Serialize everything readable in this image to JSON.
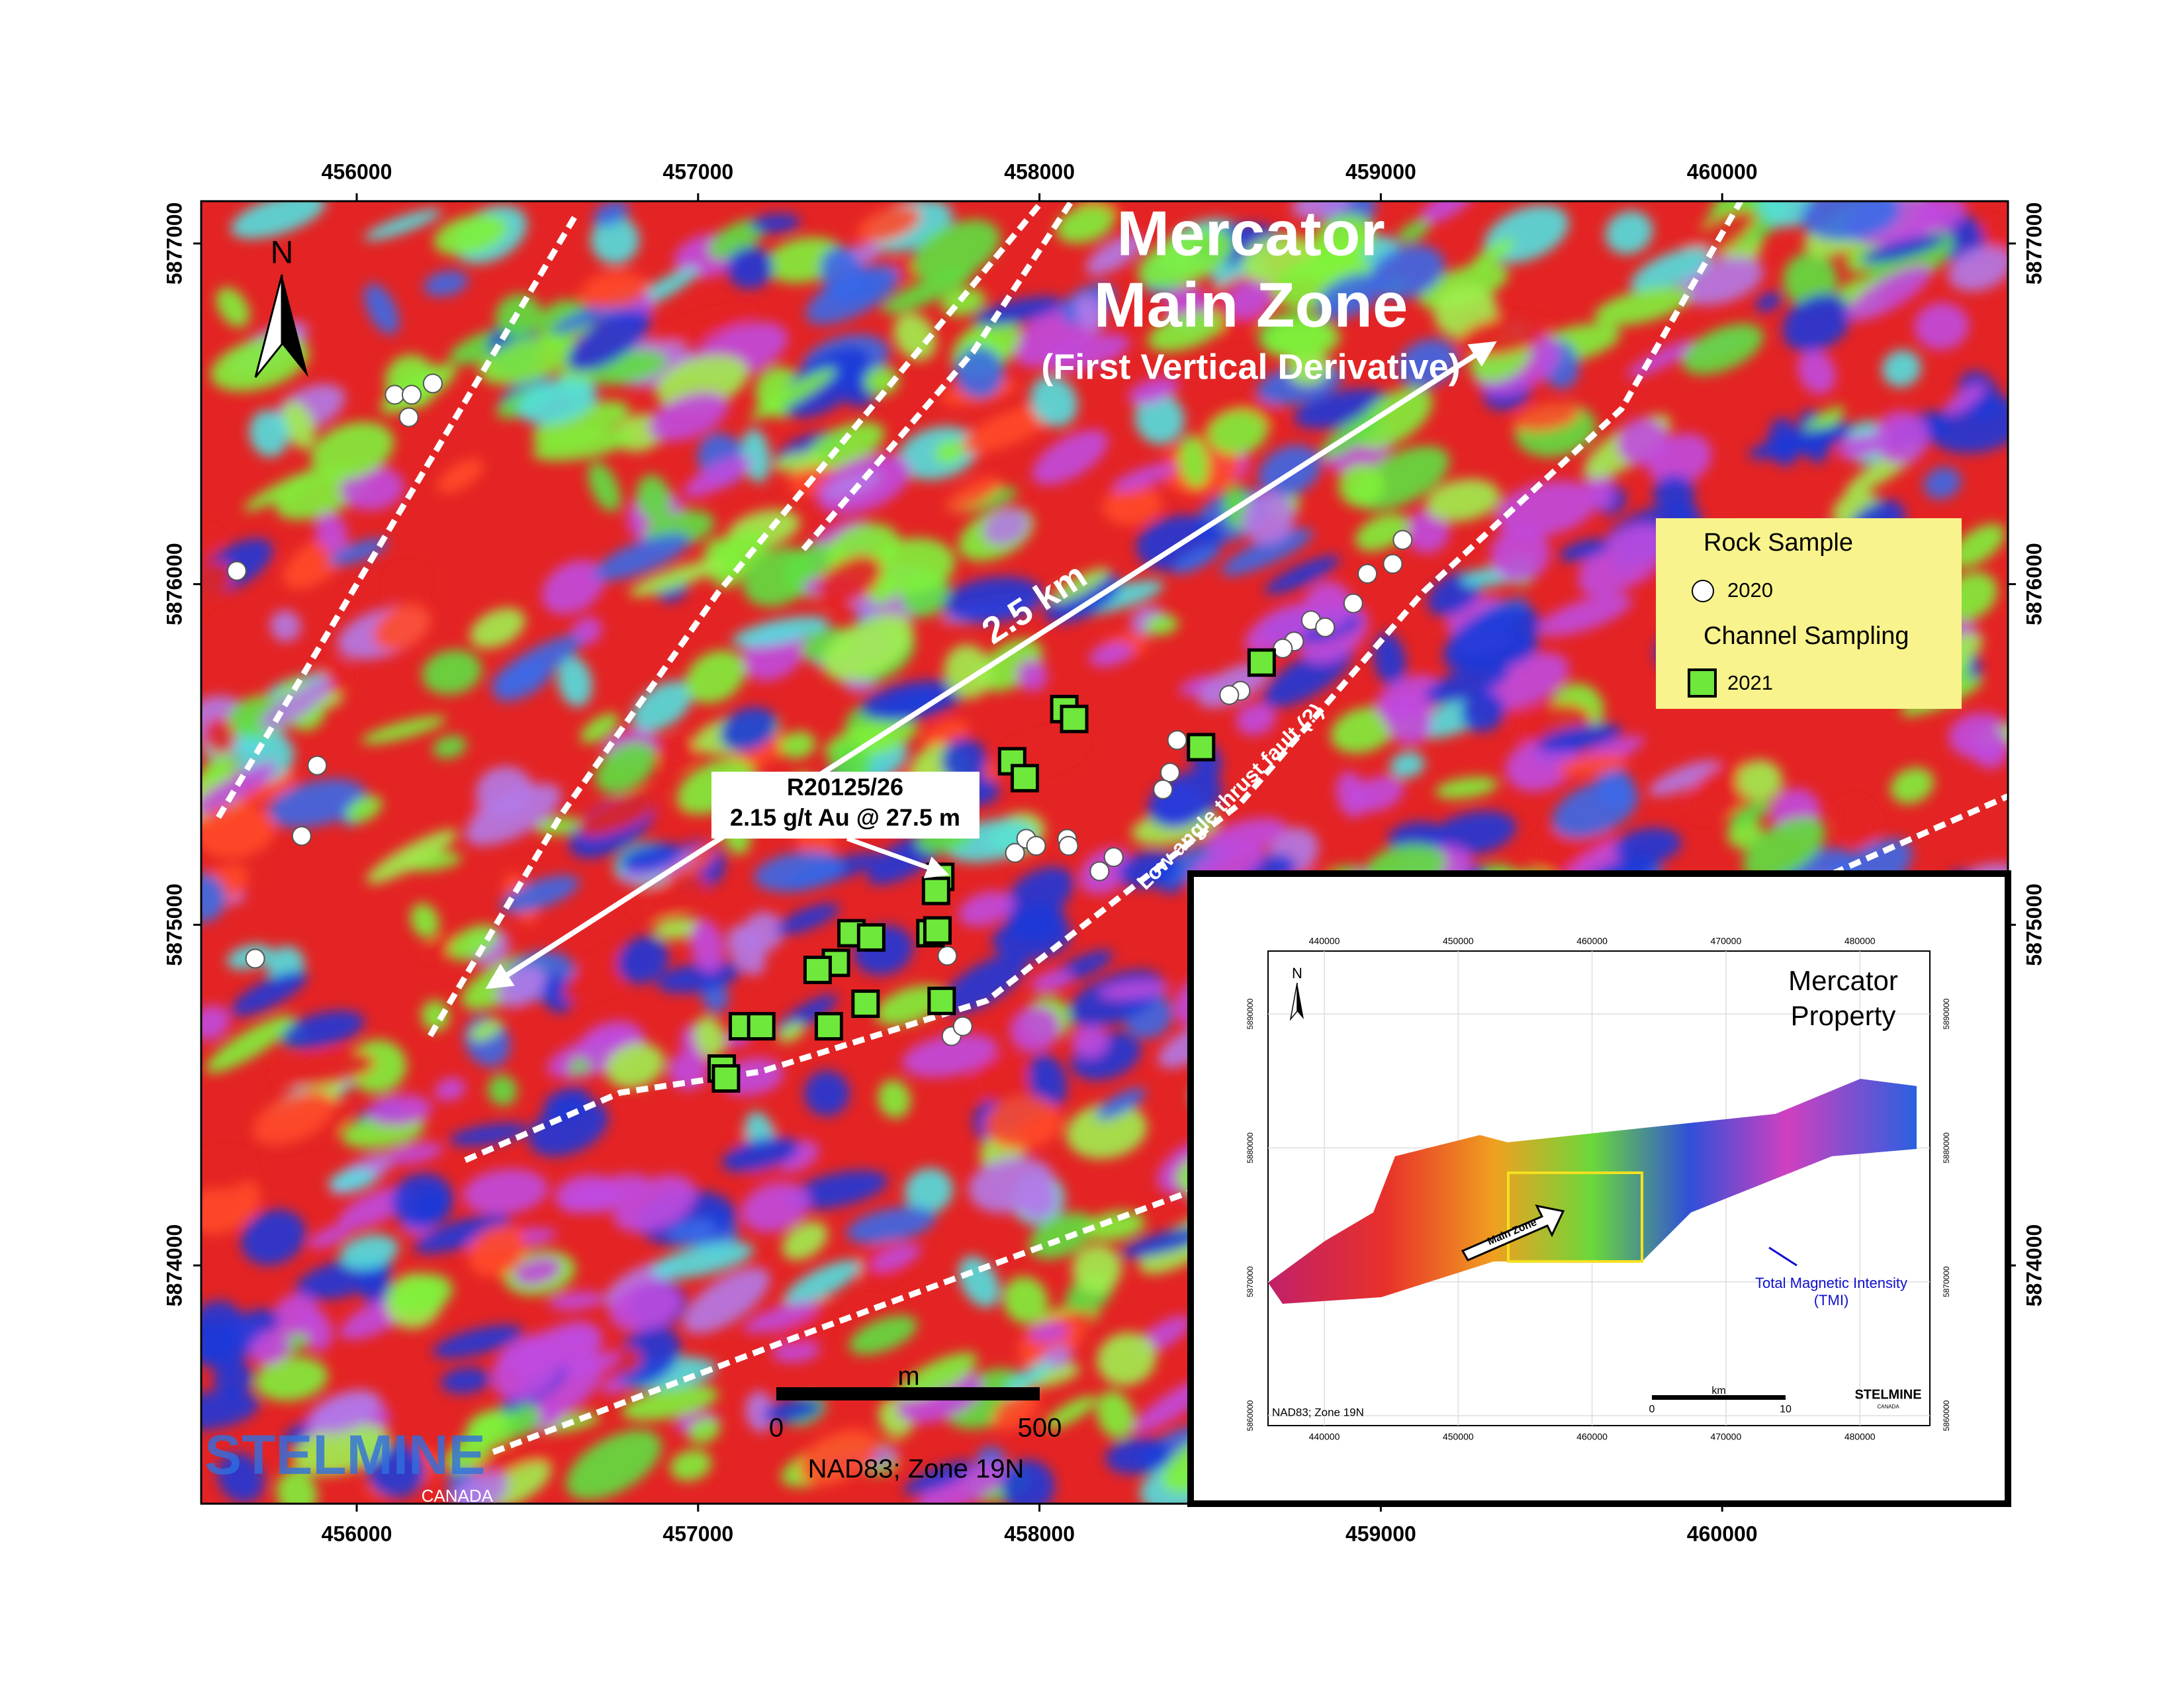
{
  "map": {
    "title_line1": "Mercator",
    "title_line2": "Main Zone",
    "subtitle": "(First Vertical Derivative)",
    "north": "N",
    "distance_label": "2.5 km",
    "fault_label": "Low angle thrust fault (?)",
    "callout": {
      "id": "R20125/26",
      "result": "2.15 g/t Au @ 27.5 m"
    },
    "xticks": [
      456000,
      457000,
      458000,
      459000,
      460000
    ],
    "yticks": [
      5874000,
      5875000,
      5876000,
      5877000
    ],
    "scale_bar": {
      "unit": "m",
      "ticks": [
        0,
        500
      ]
    },
    "projection": "NAD83; Zone 19N",
    "logo": {
      "name": "STELMINE",
      "country": "CANADA"
    }
  },
  "legend": {
    "rock_title": "Rock Sample",
    "rock_year": "2020",
    "channel_title": "Channel Sampling",
    "channel_year": "2021"
  },
  "inset": {
    "title_line1": "Mercator",
    "title_line2": "Property",
    "north": "N",
    "xticks": [
      440000,
      450000,
      460000,
      470000,
      480000
    ],
    "yticks": [
      5860000,
      5870000,
      5880000,
      5890000
    ],
    "zone_label": "Main Zone",
    "tmi_line1": "Total Magnetic Intensity",
    "tmi_line2": "(TMI)",
    "projection": "NAD83; Zone 19N",
    "scale_bar": {
      "unit": "km",
      "ticks": [
        0,
        10
      ]
    },
    "logo": {
      "name": "STELMINE",
      "country": "CANADA"
    }
  }
}
